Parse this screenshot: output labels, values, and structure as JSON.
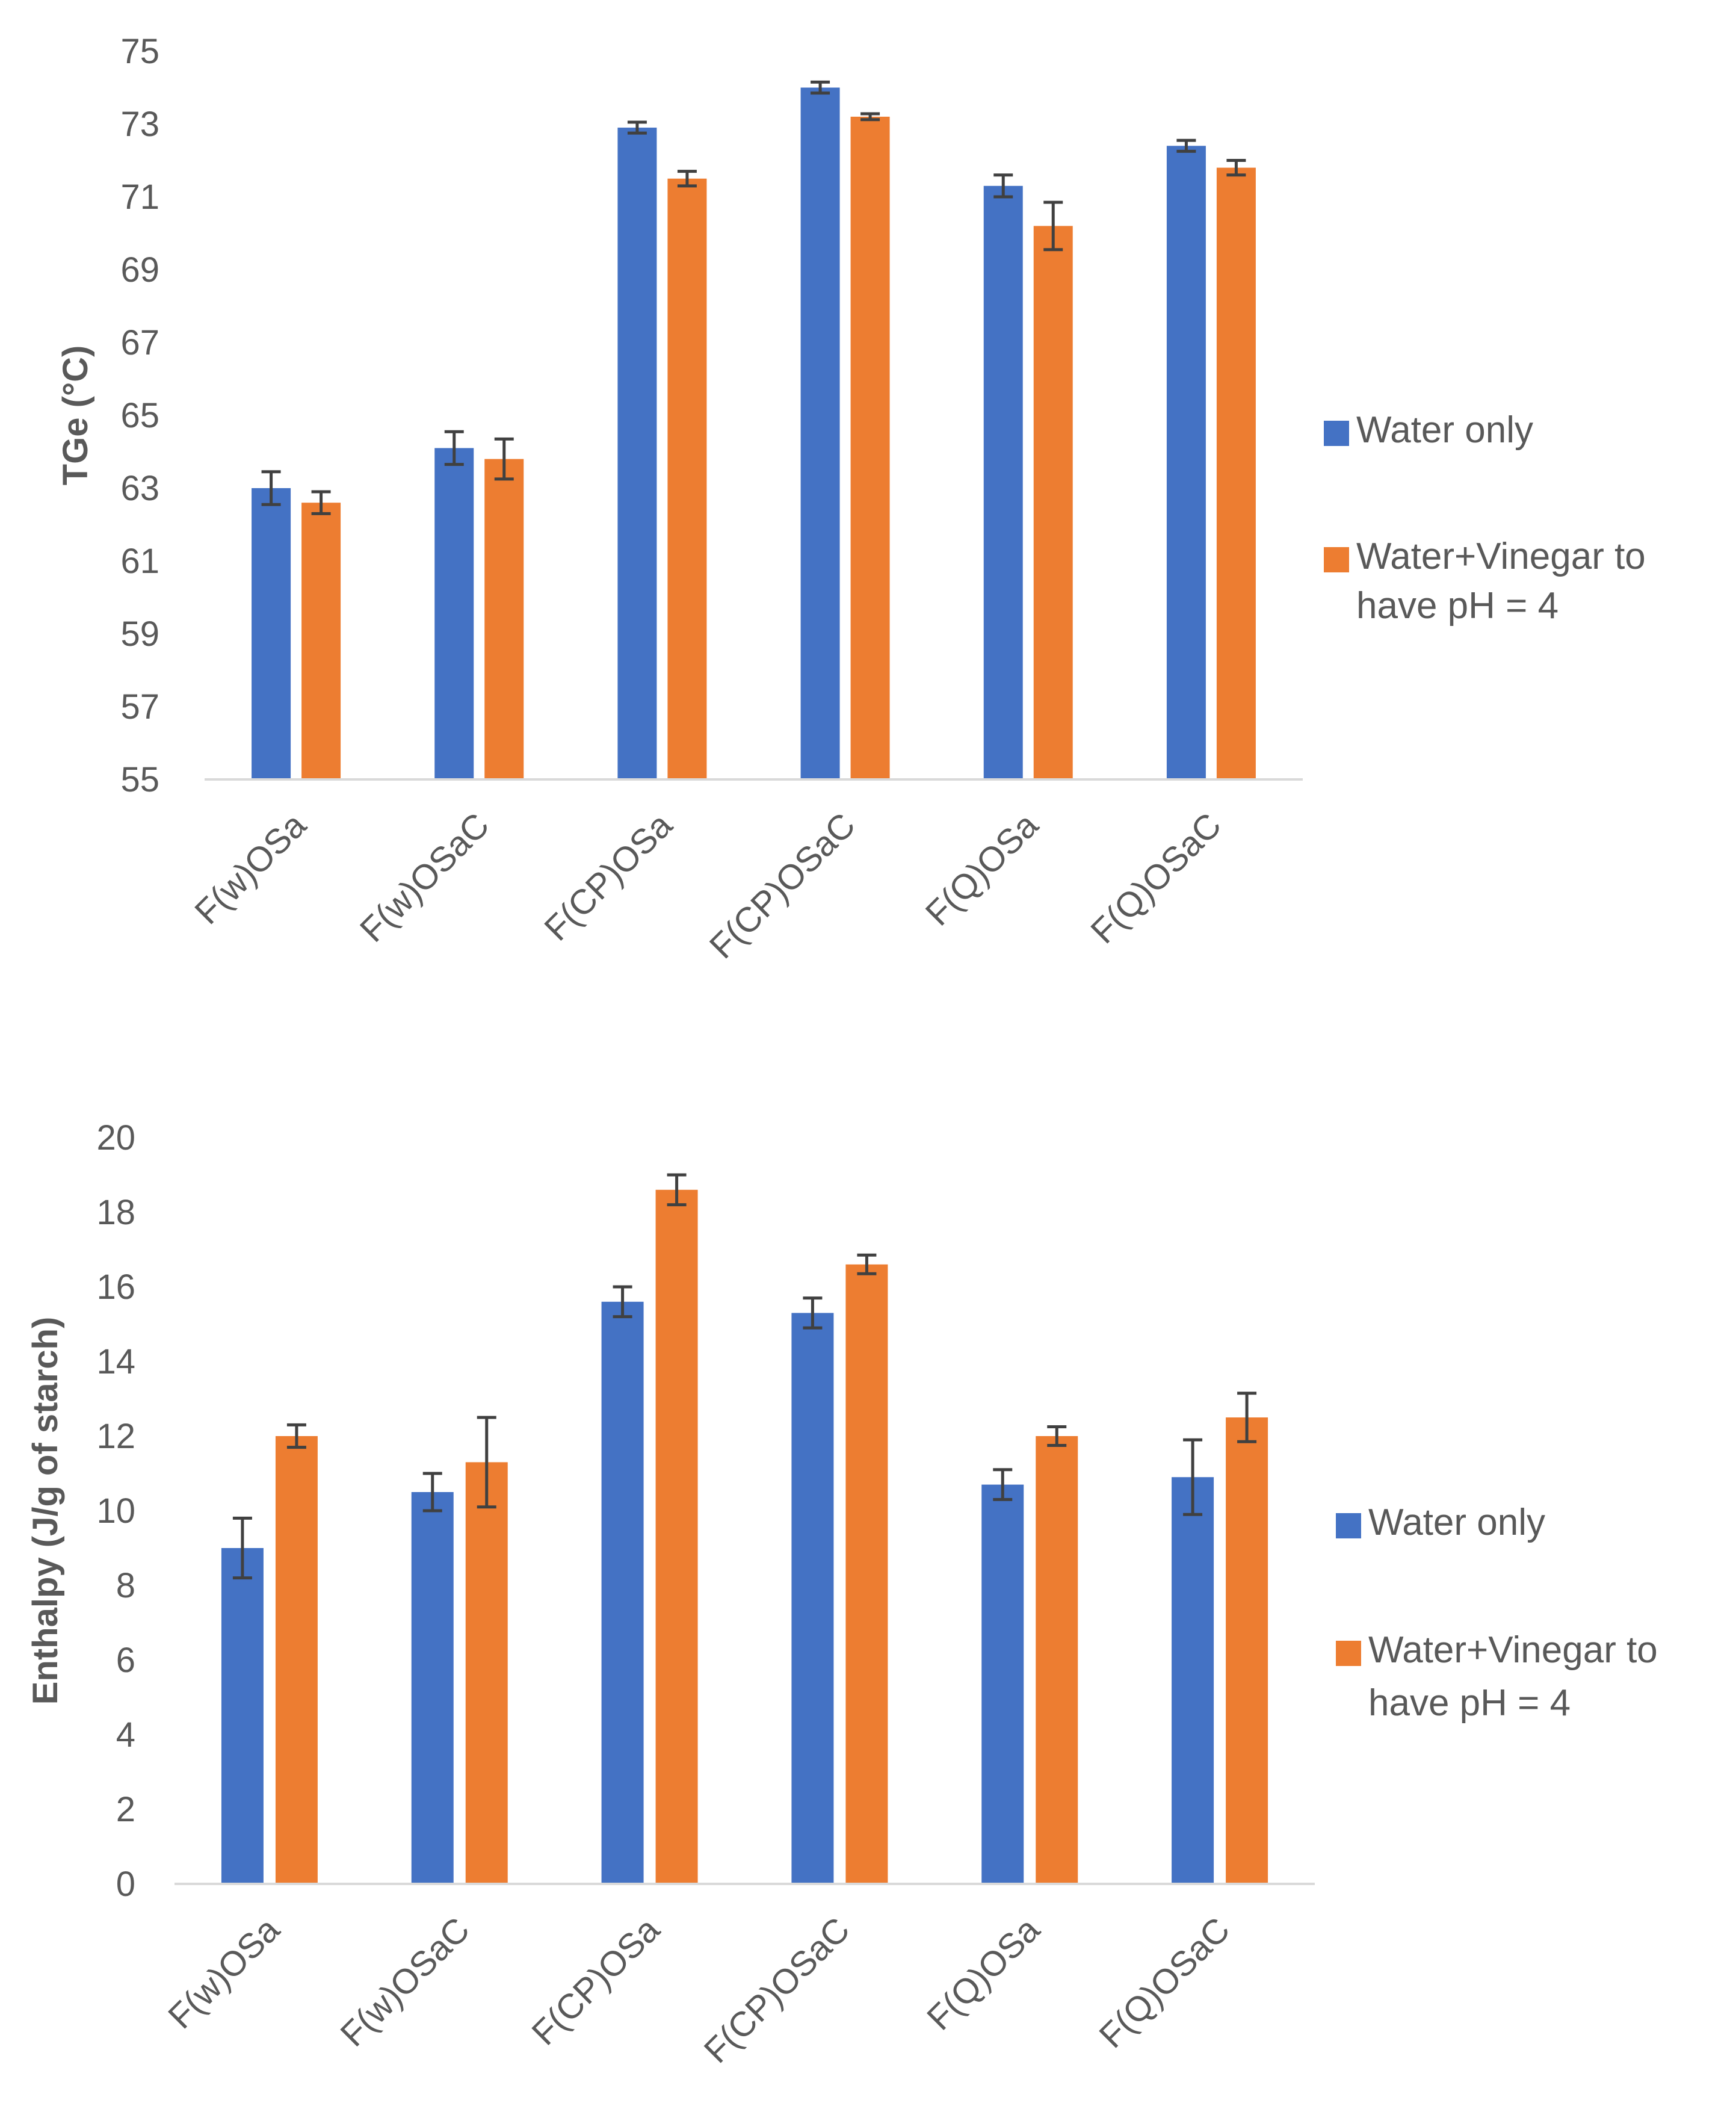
{
  "colors": {
    "series1": "#4472C4",
    "series2": "#ED7D31",
    "text": "#595959",
    "axis": "#D9D9D9",
    "errbar": "#404040"
  },
  "chart_data": [
    {
      "type": "bar",
      "ylabel": "TGe (°C)",
      "ylim": [
        55,
        75
      ],
      "yticks": [
        "55",
        "57",
        "59",
        "61",
        "63",
        "65",
        "67",
        "69",
        "71",
        "73",
        "75"
      ],
      "categories": [
        "F(w)OSa",
        "F(w)OSaC",
        "F(CP)OSa",
        "F(CP)OSaC",
        "F(Q)OSa",
        "F(Q)OSaC"
      ],
      "legend_position": "right",
      "series": [
        {
          "name": "Water only",
          "values": [
            63.0,
            64.1,
            72.9,
            74.0,
            71.3,
            72.4
          ],
          "errors": [
            0.45,
            0.45,
            0.15,
            0.15,
            0.3,
            0.15
          ]
        },
        {
          "name": "Water+Vinegar to have pH = 4",
          "values": [
            62.6,
            63.8,
            71.5,
            73.2,
            70.2,
            71.8
          ],
          "errors": [
            0.3,
            0.55,
            0.2,
            0.08,
            0.65,
            0.2
          ]
        }
      ]
    },
    {
      "type": "bar",
      "ylabel": "Enthalpy (J/g of starch)",
      "ylim": [
        0,
        20
      ],
      "yticks": [
        "0",
        "2",
        "4",
        "6",
        "8",
        "10",
        "12",
        "14",
        "16",
        "18",
        "20"
      ],
      "categories": [
        "F(w)OSa",
        "F(w)OSaC",
        "F(CP)OSa",
        "F(CP)OSaC",
        "F(Q)OSa",
        "F(Q)OSaC"
      ],
      "legend_position": "right",
      "series": [
        {
          "name": "Water only",
          "values": [
            9.0,
            10.5,
            15.6,
            15.3,
            10.7,
            10.9
          ],
          "errors": [
            0.8,
            0.5,
            0.4,
            0.4,
            0.4,
            1.0
          ]
        },
        {
          "name": "Water+Vinegar to have pH = 4",
          "values": [
            12.0,
            11.3,
            18.6,
            16.6,
            12.0,
            12.5
          ],
          "errors": [
            0.3,
            1.2,
            0.4,
            0.25,
            0.25,
            0.65
          ]
        }
      ]
    }
  ]
}
